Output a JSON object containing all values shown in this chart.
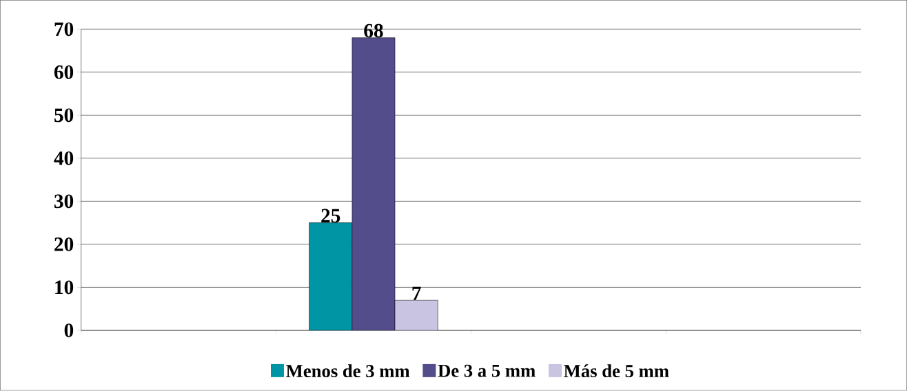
{
  "chart_data": {
    "type": "bar",
    "categories": [
      null,
      null,
      null,
      null
    ],
    "series": [
      {
        "name": "Menos de 3 mm",
        "color": "#0095a5",
        "values": [
          null,
          25,
          null,
          null
        ]
      },
      {
        "name": "De 3 a 5 mm",
        "color": "#534d8b",
        "values": [
          null,
          68,
          null,
          null
        ]
      },
      {
        "name": "Más de 5 mm",
        "color": "#c8c4e2",
        "values": [
          null,
          7,
          null,
          null
        ]
      }
    ],
    "ylim": [
      0,
      70
    ],
    "yticks": [
      0,
      10,
      20,
      30,
      40,
      50,
      60,
      70
    ],
    "grid": "y",
    "legend": "bottom",
    "data_labels": true
  }
}
